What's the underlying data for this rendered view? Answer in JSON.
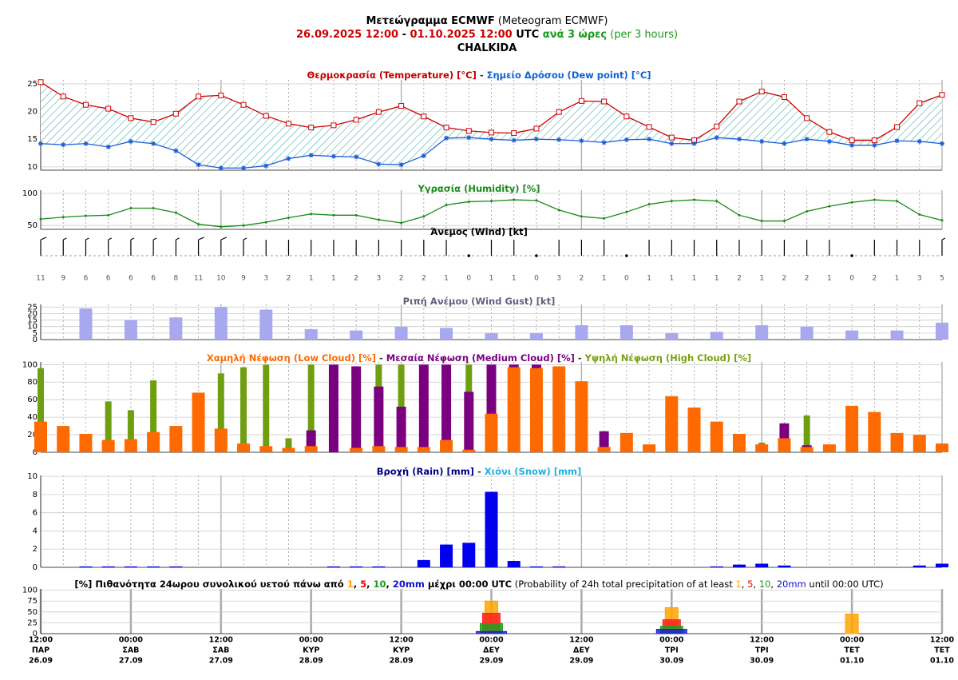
{
  "header": {
    "lines": [
      [
        {
          "text": "Μετεώγραμμα ECMWF",
          "color": "#000000",
          "bold": true
        },
        {
          "text": " (Meteogram ECMWF)",
          "color": "#000000",
          "bold": false
        }
      ],
      [
        {
          "text": "26.09.2025 12:00",
          "color": "#cc0000",
          "bold": true
        },
        {
          "text": " - ",
          "color": "#000000",
          "bold": true
        },
        {
          "text": "01.10.2025 12:00",
          "color": "#cc0000",
          "bold": true
        },
        {
          "text": " UTC",
          "color": "#000000",
          "bold": true
        },
        {
          "text": " ανά 3 ώρες",
          "color": "#1a9a1a",
          "bold": true
        },
        {
          "text": " (per 3 hours)",
          "color": "#1a9a1a",
          "bold": false
        }
      ],
      [
        {
          "text": "CHALKIDA",
          "color": "#000000",
          "bold": true
        }
      ]
    ]
  },
  "x_axis_labels": [
    {
      "time": "12:00",
      "day": "ΠΑΡ",
      "date": "26.09"
    },
    {
      "time": "00:00",
      "day": "ΣΑΒ",
      "date": "27.09"
    },
    {
      "time": "12:00",
      "day": "ΣΑΒ",
      "date": "27.09"
    },
    {
      "time": "00:00",
      "day": "ΚΥΡ",
      "date": "28.09"
    },
    {
      "time": "12:00",
      "day": "ΚΥΡ",
      "date": "28.09"
    },
    {
      "time": "00:00",
      "day": "ΔΕΥ",
      "date": "29.09"
    },
    {
      "time": "12:00",
      "day": "ΔΕΥ",
      "date": "29.09"
    },
    {
      "time": "00:00",
      "day": "ΤΡΙ",
      "date": "30.09"
    },
    {
      "time": "12:00",
      "day": "ΤΡΙ",
      "date": "30.09"
    },
    {
      "time": "00:00",
      "day": "ΤΕΤ",
      "date": "01.10"
    },
    {
      "time": "12:00",
      "day": "ΤΕΤ",
      "date": "01.10"
    }
  ],
  "chart_data": [
    {
      "type": "line",
      "title": [
        {
          "text": "Θερμοκρασία (Temperature) [°C]",
          "color": "#c00000",
          "bold": true
        },
        {
          "text": " - ",
          "color": "#333333",
          "bold": true
        },
        {
          "text": "Σημείο Δρόσου (Dew point) [°C]",
          "color": "#1060d0",
          "bold": true
        }
      ],
      "ylim": [
        9.4,
        25.7
      ],
      "yticks": [
        10,
        15,
        20,
        25
      ],
      "fill_between": true,
      "series": [
        {
          "name": "Θερμοκρασία",
          "color": "#d00000",
          "marker": "square",
          "values": [
            25.3,
            22.7,
            21.2,
            20.5,
            18.8,
            18.1,
            19.6,
            22.7,
            22.9,
            21.2,
            19.2,
            17.8,
            17.1,
            17.5,
            18.5,
            19.9,
            21.0,
            19.1,
            17.1,
            16.5,
            16.2,
            16.1,
            16.9,
            19.9,
            21.9,
            21.8,
            19.1,
            17.2,
            15.3,
            14.8,
            17.3,
            21.8,
            23.6,
            22.6,
            18.8,
            16.3,
            14.8,
            14.8,
            17.2,
            21.5,
            23.0
          ]
        },
        {
          "name": "Σημείο Δρόσου",
          "color": "#1a5fd8",
          "marker": "star",
          "values": [
            14.2,
            14.0,
            14.2,
            13.6,
            14.6,
            14.2,
            12.9,
            10.4,
            9.8,
            9.8,
            10.2,
            11.5,
            12.1,
            11.9,
            11.8,
            10.5,
            10.4,
            12.0,
            15.2,
            15.3,
            15.0,
            14.8,
            15.0,
            14.9,
            14.7,
            14.4,
            14.9,
            15.0,
            14.2,
            14.2,
            15.3,
            15.0,
            14.6,
            14.2,
            15.0,
            14.6,
            13.9,
            13.9,
            14.7,
            14.6,
            14.2
          ]
        }
      ]
    },
    {
      "type": "line",
      "title": [
        {
          "text": "Υγρασία (Humidity) [%]",
          "color": "#1a8a1a",
          "bold": true
        }
      ],
      "ylim": [
        44,
        105
      ],
      "yticks": [
        50,
        100
      ],
      "series": [
        {
          "name": "Υγρασία",
          "color": "#1a8a1a",
          "marker": "circle",
          "values": [
            60,
            63,
            65,
            66,
            77,
            77,
            70,
            52,
            48,
            50,
            55,
            62,
            68,
            66,
            66,
            59,
            54,
            64,
            82,
            87,
            88,
            90,
            89,
            74,
            64,
            61,
            71,
            83,
            88,
            90,
            88,
            66,
            57,
            57,
            72,
            80,
            86,
            90,
            88,
            67,
            58
          ]
        }
      ]
    },
    {
      "type": "barb",
      "title": [
        {
          "text": "Άνεμος (Wind) [kt]",
          "color": "#000000",
          "bold": true
        }
      ],
      "series": [
        {
          "name": "Άνεμος",
          "color": "#000000",
          "values": [
            11,
            9,
            6,
            6,
            6,
            6,
            8,
            11,
            10,
            9,
            3,
            2,
            1,
            1,
            2,
            3,
            2,
            2,
            1,
            0,
            1,
            1,
            0,
            3,
            2,
            1,
            0,
            1,
            1,
            1,
            1,
            2,
            1,
            2,
            2,
            1,
            0,
            2,
            1,
            3,
            5
          ]
        }
      ]
    },
    {
      "type": "bar",
      "title": [
        {
          "text": "Ριπή Ανέμου (Wind Gust) [kt]",
          "color": "#606080",
          "bold": true
        }
      ],
      "ylim": [
        0,
        27
      ],
      "yticks": [
        0,
        5,
        10,
        15,
        20,
        25
      ],
      "series": [
        {
          "name": "Ριπή Ανέμου",
          "color": "#a8a8f0",
          "values": [
            null,
            null,
            24,
            null,
            15,
            null,
            17,
            null,
            25,
            null,
            23,
            null,
            8,
            null,
            7,
            null,
            10,
            null,
            9,
            null,
            5,
            null,
            5,
            null,
            11,
            null,
            11,
            null,
            5,
            null,
            6,
            null,
            11,
            null,
            10,
            null,
            7,
            null,
            7,
            null,
            13
          ]
        }
      ]
    },
    {
      "type": "bar",
      "title": [
        {
          "text": "Χαμηλή Νέφωση (Low Cloud) [%]",
          "color": "#ff6a00",
          "bold": true
        },
        {
          "text": " - ",
          "color": "#333333",
          "bold": true
        },
        {
          "text": "Μεσαία Νέφωση (Medium Cloud) [%]",
          "color": "#7a0080",
          "bold": true
        },
        {
          "text": " - ",
          "color": "#333333",
          "bold": true
        },
        {
          "text": "Υψηλή Νέφωση (High Cloud) [%]",
          "color": "#7aa010",
          "bold": true
        }
      ],
      "ylim": [
        0,
        103
      ],
      "yticks": [
        0,
        20,
        40,
        60,
        80,
        100
      ],
      "series": [
        {
          "name": "Χαμηλή Νέφωση",
          "color": "#ff6a00",
          "values": [
            35,
            30,
            21,
            14,
            15,
            23,
            30,
            68,
            27,
            10,
            7,
            5,
            7,
            0,
            5,
            7,
            6,
            6,
            14,
            3,
            44,
            97,
            96,
            98,
            81,
            6,
            22,
            9,
            64,
            51,
            35,
            21,
            9,
            16,
            6,
            9,
            53,
            46,
            22,
            20,
            10
          ]
        },
        {
          "name": "Μεσαία Νέφωση",
          "color": "#7a0080",
          "values": [
            0,
            0,
            0,
            0,
            0,
            0,
            0,
            0,
            0,
            0,
            0,
            0,
            25,
            100,
            98,
            75,
            52,
            100,
            100,
            69,
            100,
            100,
            100,
            0,
            0,
            24,
            0,
            0,
            0,
            0,
            0,
            0,
            0,
            33,
            8,
            0,
            0,
            0,
            0,
            0,
            0
          ]
        },
        {
          "name": "Υψηλή Νέφωση",
          "color": "#6f9f10",
          "values": [
            96,
            0,
            0,
            58,
            48,
            82,
            0,
            0,
            90,
            97,
            100,
            16,
            100,
            0,
            0,
            100,
            100,
            0,
            0,
            100,
            0,
            0,
            0,
            0,
            0,
            0,
            0,
            0,
            0,
            0,
            0,
            0,
            11,
            0,
            42,
            0,
            0,
            0,
            0,
            0,
            0
          ]
        }
      ]
    },
    {
      "type": "bar",
      "title": [
        {
          "text": "Βροχή (Rain) [mm]",
          "color": "#000080",
          "bold": true
        },
        {
          "text": " - ",
          "color": "#333333",
          "bold": true
        },
        {
          "text": "Χιόνι (Snow) [mm]",
          "color": "#20b0e0",
          "bold": true
        }
      ],
      "ylim": [
        0,
        10.1
      ],
      "yticks": [
        0,
        2,
        4,
        6,
        8,
        10
      ],
      "series": [
        {
          "name": "Βροχή",
          "color": "#0000ee",
          "values": [
            0,
            0,
            0.1,
            0.1,
            0.1,
            0.1,
            0.1,
            0,
            0,
            0,
            0,
            0,
            0,
            0.1,
            0.1,
            0.1,
            0,
            0.8,
            2.5,
            2.7,
            8.3,
            0.7,
            0.1,
            0.1,
            0,
            0,
            0,
            0,
            0,
            0,
            0.1,
            0.3,
            0.4,
            0.2,
            0,
            0,
            0,
            0,
            0,
            0.2,
            0.4
          ]
        },
        {
          "name": "Χιόνι",
          "color": "#20b0e0",
          "values": [
            0,
            0,
            0,
            0,
            0,
            0,
            0,
            0,
            0,
            0,
            0,
            0,
            0,
            0,
            0,
            0,
            0,
            0,
            0,
            0,
            0,
            0,
            0,
            0,
            0,
            0,
            0,
            0,
            0,
            0,
            0,
            0,
            0,
            0,
            0,
            0,
            0,
            0,
            0,
            0,
            0
          ]
        }
      ]
    },
    {
      "type": "prob",
      "title": [
        {
          "text": "[%] Πιθανότητα 24ωρου συνολικού υετού πάνω από ",
          "color": "#000000",
          "bold": true
        },
        {
          "text": "1",
          "color": "#ffa500",
          "bold": true
        },
        {
          "text": ", ",
          "color": "#000000",
          "bold": true
        },
        {
          "text": "5",
          "color": "#ee0000",
          "bold": true
        },
        {
          "text": ", ",
          "color": "#000000",
          "bold": true
        },
        {
          "text": "10",
          "color": "#1a9a1a",
          "bold": true
        },
        {
          "text": ", ",
          "color": "#000000",
          "bold": true
        },
        {
          "text": "20mm",
          "color": "#1010d0",
          "bold": true
        },
        {
          "text": " μέχρι 00:00 UTC",
          "color": "#000000",
          "bold": true
        },
        {
          "text": " (Probability of 24h total precipitation of at least ",
          "color": "#000000",
          "bold": false
        },
        {
          "text": "1",
          "color": "#ffa500",
          "bold": false
        },
        {
          "text": ", ",
          "color": "#000000",
          "bold": false
        },
        {
          "text": "5",
          "color": "#ee0000",
          "bold": false
        },
        {
          "text": ", ",
          "color": "#000000",
          "bold": false
        },
        {
          "text": "10",
          "color": "#1a9a1a",
          "bold": false
        },
        {
          "text": ", ",
          "color": "#000000",
          "bold": false
        },
        {
          "text": "20mm",
          "color": "#1010d0",
          "bold": false
        },
        {
          "text": " until 00:00 UTC)",
          "color": "#000000",
          "bold": false
        }
      ],
      "ylim": [
        0,
        103
      ],
      "yticks": [
        0,
        25,
        50,
        75,
        100
      ],
      "series": [
        {
          "name": "1",
          "color": "#ffa500",
          "values": [
            0,
            0,
            75,
            60,
            45
          ]
        },
        {
          "name": "5",
          "color": "#ff2020",
          "values": [
            0,
            0,
            47,
            32,
            0
          ]
        },
        {
          "name": "10",
          "color": "#20a020",
          "values": [
            0,
            0,
            23,
            17,
            0
          ]
        },
        {
          "name": "20mm",
          "color": "#2020d0",
          "values": [
            0,
            0,
            5,
            10,
            0
          ]
        }
      ]
    }
  ]
}
